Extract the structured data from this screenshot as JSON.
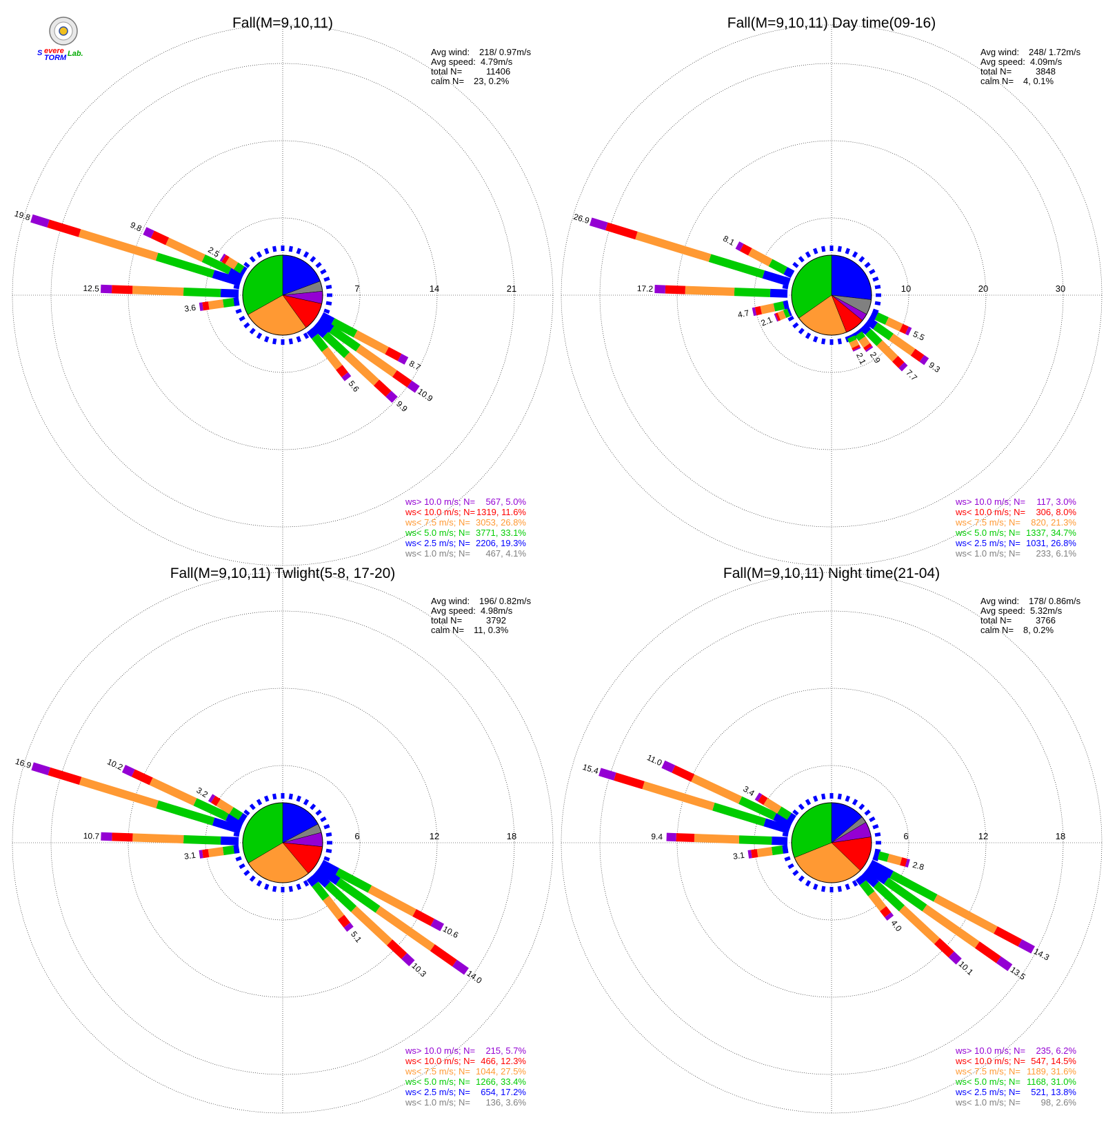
{
  "colors": {
    "gt10": "#9400d3",
    "lt10": "#ff0000",
    "lt7_5": "#ff9933",
    "lt5": "#00cc00",
    "lt2_5": "#0000ff",
    "lt1": "#808080"
  },
  "logo": {
    "icon": "severe-storm-lab-logo",
    "text": "Severe Storm Lab."
  },
  "chart_data": [
    {
      "type": "windrose",
      "title": "Fall(M=9,10,11)",
      "rings": [
        7,
        14,
        21
      ],
      "stats": {
        "avg_wind_label": "Avg wind:",
        "avg_wind": "218/ 0.97m/s",
        "avg_speed_label": "Avg speed:",
        "avg_speed": "4.79m/s",
        "total_label": "total N=",
        "total": "11406",
        "calm_label": "calm N=",
        "calm": "23,   0.2%"
      },
      "legend": [
        {
          "label": "ws> 10.0 m/s; N=",
          "value": "567,  5.0%",
          "color": "gt10"
        },
        {
          "label": "ws< 10.0 m/s; N=",
          "value": "1319, 11.6%",
          "color": "lt10"
        },
        {
          "label": "ws<  7.5 m/s; N=",
          "value": "3053, 26.8%",
          "color": "lt7_5"
        },
        {
          "label": "ws<  5.0 m/s; N=",
          "value": "3771, 33.1%",
          "color": "lt5"
        },
        {
          "label": "ws<  2.5 m/s; N=",
          "value": "2206, 19.3%",
          "color": "lt2_5"
        },
        {
          "label": "ws<  1.0 m/s; N=",
          "value": "467,  4.1%",
          "color": "lt1"
        }
      ],
      "pie": [
        19.3,
        4.1,
        5.0,
        11.6,
        26.8,
        33.1
      ],
      "spokes": [
        {
          "dir": 287,
          "value": 19.8,
          "label": "19.8"
        },
        {
          "dir": 295,
          "value": 9.8,
          "label": "9.8"
        },
        {
          "dir": 302,
          "value": 2.5,
          "label": "2.5"
        },
        {
          "dir": 272,
          "value": 12.5,
          "label": "12.5"
        },
        {
          "dir": 262,
          "value": 3.6,
          "label": "3.6"
        },
        {
          "dir": 118,
          "value": 8.7,
          "label": "8.7"
        },
        {
          "dir": 125,
          "value": 10.9,
          "label": "10.9"
        },
        {
          "dir": 133,
          "value": 9.9,
          "label": "9.9"
        },
        {
          "dir": 142,
          "value": 5.6,
          "label": "5.6"
        }
      ]
    },
    {
      "type": "windrose",
      "title": "Fall(M=9,10,11) Day time(09-16)",
      "rings": [
        10,
        20,
        30
      ],
      "stats": {
        "avg_wind_label": "Avg wind:",
        "avg_wind": "248/ 1.72m/s",
        "avg_speed_label": "Avg speed:",
        "avg_speed": "4.09m/s",
        "total_label": "total N=",
        "total": "3848",
        "calm_label": "calm N=",
        "calm": "4,   0.1%"
      },
      "legend": [
        {
          "label": "ws> 10.0 m/s; N=",
          "value": "117,  3.0%",
          "color": "gt10"
        },
        {
          "label": "ws< 10.0 m/s; N=",
          "value": "306,  8.0%",
          "color": "lt10"
        },
        {
          "label": "ws<  7.5 m/s; N=",
          "value": "820, 21.3%",
          "color": "lt7_5"
        },
        {
          "label": "ws<  5.0 m/s; N=",
          "value": "1337, 34.7%",
          "color": "lt5"
        },
        {
          "label": "ws<  2.5 m/s; N=",
          "value": "1031, 26.8%",
          "color": "lt2_5"
        },
        {
          "label": "ws<  1.0 m/s; N=",
          "value": "233,  6.1%",
          "color": "lt1"
        }
      ],
      "pie": [
        26.8,
        6.1,
        3.0,
        8.0,
        21.3,
        34.7
      ],
      "spokes": [
        {
          "dir": 287,
          "value": 26.9,
          "label": "26.9"
        },
        {
          "dir": 298,
          "value": 8.1,
          "label": "8.1"
        },
        {
          "dir": 272,
          "value": 17.2,
          "label": "17.2"
        },
        {
          "dir": 258,
          "value": 4.7,
          "label": "4.7"
        },
        {
          "dir": 248,
          "value": 2.1,
          "label": "2.1"
        },
        {
          "dir": 115,
          "value": 5.5,
          "label": "5.5"
        },
        {
          "dir": 125,
          "value": 9.3,
          "label": "9.3"
        },
        {
          "dir": 135,
          "value": 7.7,
          "label": "7.7"
        },
        {
          "dir": 145,
          "value": 2.9,
          "label": "2.9"
        },
        {
          "dir": 155,
          "value": 2.1,
          "label": "2.1"
        }
      ]
    },
    {
      "type": "windrose",
      "title": "Fall(M=9,10,11) Twlight(5-8, 17-20)",
      "rings": [
        6,
        12,
        18
      ],
      "stats": {
        "avg_wind_label": "Avg wind:",
        "avg_wind": "196/ 0.82m/s",
        "avg_speed_label": "Avg speed:",
        "avg_speed": "4.98m/s",
        "total_label": "total N=",
        "total": "3792",
        "calm_label": "calm N=",
        "calm": "11,   0.3%"
      },
      "legend": [
        {
          "label": "ws> 10.0 m/s; N=",
          "value": "215,  5.7%",
          "color": "gt10"
        },
        {
          "label": "ws< 10.0 m/s; N=",
          "value": "466, 12.3%",
          "color": "lt10"
        },
        {
          "label": "ws<  7.5 m/s; N=",
          "value": "1044, 27.5%",
          "color": "lt7_5"
        },
        {
          "label": "ws<  5.0 m/s; N=",
          "value": "1266, 33.4%",
          "color": "lt5"
        },
        {
          "label": "ws<  2.5 m/s; N=",
          "value": "654, 17.2%",
          "color": "lt2_5"
        },
        {
          "label": "ws<  1.0 m/s; N=",
          "value": "136,  3.6%",
          "color": "lt1"
        }
      ],
      "pie": [
        17.2,
        3.6,
        5.7,
        12.3,
        27.5,
        33.4
      ],
      "spokes": [
        {
          "dir": 287,
          "value": 16.9,
          "label": "16.9"
        },
        {
          "dir": 295,
          "value": 10.2,
          "label": "10.2"
        },
        {
          "dir": 302,
          "value": 3.2,
          "label": "3.2"
        },
        {
          "dir": 272,
          "value": 10.7,
          "label": "10.7"
        },
        {
          "dir": 262,
          "value": 3.1,
          "label": "3.1"
        },
        {
          "dir": 118,
          "value": 10.6,
          "label": "10.6"
        },
        {
          "dir": 125,
          "value": 14.0,
          "label": "14.0"
        },
        {
          "dir": 133,
          "value": 10.3,
          "label": "10.3"
        },
        {
          "dir": 142,
          "value": 5.1,
          "label": "5.1"
        }
      ]
    },
    {
      "type": "windrose",
      "title": "Fall(M=9,10,11) Night time(21-04)",
      "rings": [
        6,
        12,
        18
      ],
      "stats": {
        "avg_wind_label": "Avg wind:",
        "avg_wind": "178/ 0.86m/s",
        "avg_speed_label": "Avg speed:",
        "avg_speed": "5.32m/s",
        "total_label": "total N=",
        "total": "3766",
        "calm_label": "calm N=",
        "calm": "8,   0.2%"
      },
      "legend": [
        {
          "label": "ws> 10.0 m/s; N=",
          "value": "235,  6.2%",
          "color": "gt10"
        },
        {
          "label": "ws< 10.0 m/s; N=",
          "value": "547, 14.5%",
          "color": "lt10"
        },
        {
          "label": "ws<  7.5 m/s; N=",
          "value": "1189, 31.6%",
          "color": "lt7_5"
        },
        {
          "label": "ws<  5.0 m/s; N=",
          "value": "1168, 31.0%",
          "color": "lt5"
        },
        {
          "label": "ws<  2.5 m/s; N=",
          "value": "521, 13.8%",
          "color": "lt2_5"
        },
        {
          "label": "ws<  1.0 m/s; N=",
          "value": "98,  2.6%",
          "color": "lt1"
        }
      ],
      "pie": [
        13.8,
        2.6,
        6.2,
        14.5,
        31.6,
        31.0
      ],
      "spokes": [
        {
          "dir": 287,
          "value": 15.4,
          "label": "15.4"
        },
        {
          "dir": 295,
          "value": 11.0,
          "label": "11.0"
        },
        {
          "dir": 302,
          "value": 3.4,
          "label": "3.4"
        },
        {
          "dir": 272,
          "value": 9.4,
          "label": "9.4"
        },
        {
          "dir": 262,
          "value": 3.1,
          "label": "3.1"
        },
        {
          "dir": 105,
          "value": 2.8,
          "label": "2.8"
        },
        {
          "dir": 118,
          "value": 14.3,
          "label": "14.3"
        },
        {
          "dir": 125,
          "value": 13.5,
          "label": "13.5"
        },
        {
          "dir": 133,
          "value": 10.1,
          "label": "10.1"
        },
        {
          "dir": 142,
          "value": 4.0,
          "label": "4.0"
        }
      ]
    }
  ]
}
